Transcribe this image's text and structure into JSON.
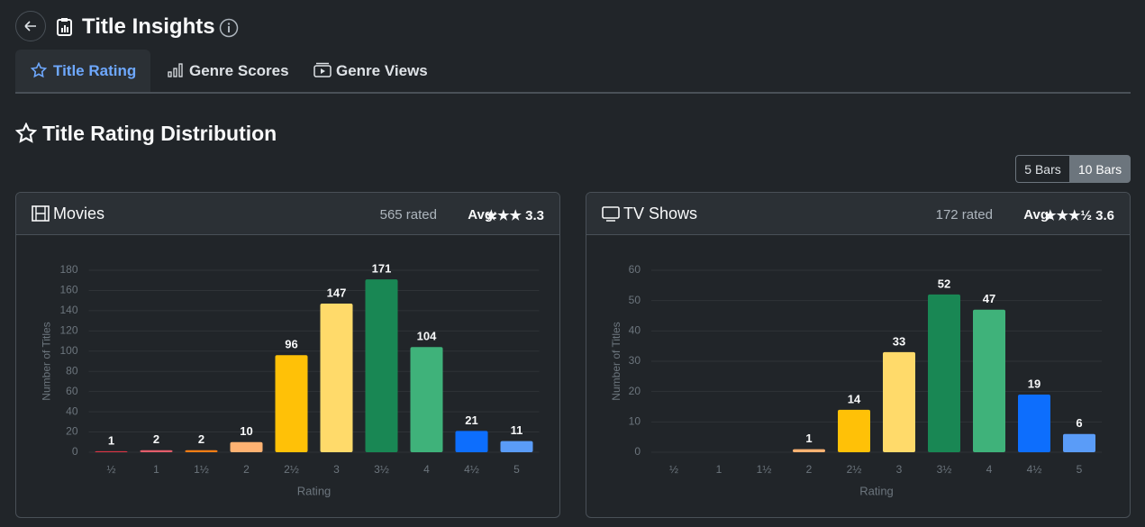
{
  "header": {
    "title": "Title Insights"
  },
  "tabs": [
    "Title Rating",
    "Genre Scores",
    "Genre Views"
  ],
  "section": {
    "title": "Title Rating Distribution"
  },
  "toggle": [
    "5 Bars",
    "10 Bars"
  ],
  "cards": [
    {
      "title": "Movies",
      "rated": "565 rated",
      "avg_label": "Avg:",
      "avg_value": "★★★ 3.3"
    },
    {
      "title": "TV Shows",
      "rated": "172 rated",
      "avg_label": "Avg:",
      "avg_value": "★★★½ 3.6"
    }
  ],
  "chart_data": [
    {
      "type": "bar",
      "x_label": "Rating",
      "y_label": "Number of Titles",
      "categories": [
        "½",
        "1",
        "1½",
        "2",
        "2½",
        "3",
        "3½",
        "4",
        "4½",
        "5"
      ],
      "values": [
        1,
        2,
        2,
        10,
        96,
        147,
        171,
        104,
        21,
        11
      ],
      "colors": [
        "#dc3545",
        "#e35d6a",
        "#fd7e14",
        "#feb272",
        "#ffc107",
        "#ffda6a",
        "#198754",
        "#3fb27a",
        "#0d6efd",
        "#5a9cf8"
      ],
      "ylim": [
        0,
        180
      ],
      "yticks": [
        0,
        20,
        40,
        60,
        80,
        100,
        120,
        140,
        160,
        180
      ],
      "grid": true
    },
    {
      "type": "bar",
      "x_label": "Rating",
      "y_label": "Number of Titles",
      "categories": [
        "½",
        "1",
        "1½",
        "2",
        "2½",
        "3",
        "3½",
        "4",
        "4½",
        "5"
      ],
      "values": [
        0,
        0,
        0,
        1,
        14,
        33,
        52,
        47,
        19,
        6
      ],
      "colors": [
        "#dc3545",
        "#e35d6a",
        "#fd7e14",
        "#feb272",
        "#ffc107",
        "#ffda6a",
        "#198754",
        "#3fb27a",
        "#0d6efd",
        "#5a9cf8"
      ],
      "ylim": [
        0,
        60
      ],
      "yticks": [
        0,
        10,
        20,
        30,
        40,
        50,
        60
      ],
      "grid": true
    }
  ]
}
